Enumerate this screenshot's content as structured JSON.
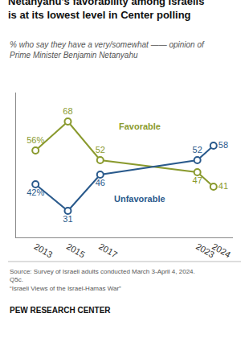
{
  "chart_data": {
    "type": "line",
    "title": "Netanyahu’s favorability among Israelis\nis at its lowest level in Center polling",
    "subtitle": "% who say they have a very/somewhat —— opinion of\nPrime Minister Benjamin Netanyahu",
    "x": [
      2013,
      2015,
      2017,
      2023,
      2024
    ],
    "series": [
      {
        "name": "Favorable",
        "color": "#8a9a2e",
        "values": [
          56,
          68,
          52,
          47,
          41
        ],
        "value_labels": [
          "56%",
          "68",
          "52",
          "47",
          "41"
        ]
      },
      {
        "name": "Unfavorable",
        "color": "#2a5a8c",
        "values": [
          42,
          31,
          46,
          52,
          58
        ],
        "value_labels": [
          "42%",
          "31",
          "46",
          "52",
          "58"
        ]
      }
    ],
    "xlim": [
      2011.8,
      2025.2
    ],
    "xticks": [
      2013,
      2015,
      2017,
      2023,
      2024
    ],
    "ylim": [
      20,
      80
    ],
    "grid": false,
    "tick_labels": "x",
    "data_labels": true,
    "marker": "circle",
    "line_style": "solid",
    "annotations": [
      "Source: Survey of Israeli adults conducted March 3-April 4, 2024.\nQ5c.\n“Israeli Views of the Israel-Hamas War”",
      "PEW RESEARCH CENTER"
    ]
  }
}
